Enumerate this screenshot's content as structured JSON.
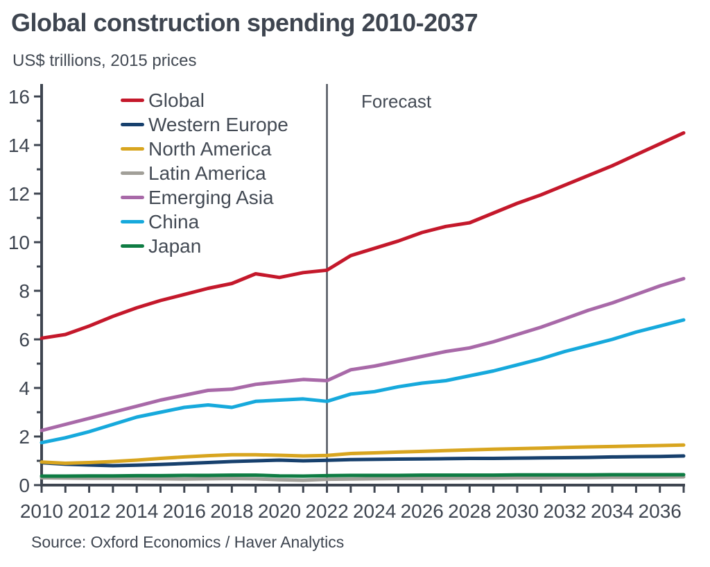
{
  "header": {
    "title": "Global construction spending 2010-2037",
    "subtitle": "US$ trillions, 2015 prices"
  },
  "annotations": {
    "forecast_label": "Forecast"
  },
  "footer": {
    "source": "Source: Oxford Economics / Haver Analytics"
  },
  "colors": {
    "text": "#3e4550",
    "axis": "#3e4550",
    "tick_label": "#3e4550",
    "forecast_divider": "#4d535c",
    "background": "#ffffff"
  },
  "chart_data": {
    "type": "line",
    "title": "Global construction spending 2010-2037",
    "subtitle": "US$ trillions, 2015 prices",
    "xlabel": "",
    "ylabel": "US$ trillions, 2015 prices",
    "ylim": [
      0,
      16
    ],
    "y_ticks": [
      0,
      2,
      4,
      6,
      8,
      10,
      12,
      14,
      16
    ],
    "x": [
      2010,
      2011,
      2012,
      2013,
      2014,
      2015,
      2016,
      2017,
      2018,
      2019,
      2020,
      2021,
      2022,
      2023,
      2024,
      2025,
      2026,
      2027,
      2028,
      2029,
      2030,
      2031,
      2032,
      2033,
      2034,
      2035,
      2036,
      2037
    ],
    "x_tick_labels": [
      2010,
      2012,
      2014,
      2016,
      2018,
      2020,
      2022,
      2024,
      2026,
      2028,
      2030,
      2032,
      2034,
      2036
    ],
    "grid": false,
    "legend_position": "upper-left-inside",
    "forecast_start_x": 2022,
    "series": [
      {
        "name": "Global",
        "color": "#c4182b",
        "values": [
          6.05,
          6.2,
          6.55,
          6.95,
          7.3,
          7.6,
          7.85,
          8.1,
          8.3,
          8.7,
          8.55,
          8.75,
          8.85,
          9.45,
          9.75,
          10.05,
          10.4,
          10.65,
          10.8,
          11.2,
          11.6,
          11.95,
          12.35,
          12.75,
          13.15,
          13.6,
          14.05,
          14.5
        ]
      },
      {
        "name": "Western Europe",
        "color": "#17406d",
        "values": [
          0.92,
          0.86,
          0.83,
          0.8,
          0.82,
          0.85,
          0.89,
          0.93,
          0.97,
          1.0,
          1.03,
          1.0,
          1.02,
          1.05,
          1.06,
          1.07,
          1.08,
          1.09,
          1.1,
          1.1,
          1.11,
          1.12,
          1.13,
          1.14,
          1.16,
          1.17,
          1.18,
          1.2
        ]
      },
      {
        "name": "North America",
        "color": "#d8a51f",
        "values": [
          0.95,
          0.9,
          0.93,
          0.97,
          1.03,
          1.1,
          1.16,
          1.21,
          1.25,
          1.25,
          1.23,
          1.2,
          1.22,
          1.3,
          1.33,
          1.36,
          1.39,
          1.42,
          1.45,
          1.48,
          1.5,
          1.52,
          1.55,
          1.57,
          1.59,
          1.61,
          1.63,
          1.65
        ]
      },
      {
        "name": "Latin America",
        "color": "#a19f98",
        "values": [
          0.3,
          0.29,
          0.28,
          0.28,
          0.27,
          0.26,
          0.25,
          0.26,
          0.27,
          0.26,
          0.22,
          0.2,
          0.24,
          0.25,
          0.26,
          0.27,
          0.27,
          0.28,
          0.29,
          0.29,
          0.3,
          0.3,
          0.31,
          0.31,
          0.32,
          0.32,
          0.33,
          0.34
        ]
      },
      {
        "name": "Emerging Asia",
        "color": "#a869a8",
        "values": [
          2.25,
          2.5,
          2.75,
          3.0,
          3.25,
          3.5,
          3.7,
          3.9,
          3.95,
          4.15,
          4.25,
          4.35,
          4.3,
          4.75,
          4.9,
          5.1,
          5.3,
          5.5,
          5.65,
          5.9,
          6.2,
          6.5,
          6.85,
          7.2,
          7.5,
          7.85,
          8.2,
          8.5
        ]
      },
      {
        "name": "China",
        "color": "#16a9dc",
        "values": [
          1.75,
          1.95,
          2.2,
          2.5,
          2.8,
          3.0,
          3.2,
          3.3,
          3.2,
          3.45,
          3.5,
          3.55,
          3.45,
          3.75,
          3.85,
          4.05,
          4.2,
          4.3,
          4.5,
          4.7,
          4.95,
          5.2,
          5.5,
          5.75,
          6.0,
          6.3,
          6.55,
          6.8
        ]
      },
      {
        "name": "Japan",
        "color": "#0e7c43",
        "values": [
          0.37,
          0.37,
          0.38,
          0.38,
          0.39,
          0.39,
          0.4,
          0.4,
          0.41,
          0.41,
          0.38,
          0.37,
          0.39,
          0.4,
          0.4,
          0.4,
          0.41,
          0.41,
          0.41,
          0.41,
          0.42,
          0.42,
          0.42,
          0.42,
          0.43,
          0.43,
          0.43,
          0.43
        ]
      }
    ]
  }
}
